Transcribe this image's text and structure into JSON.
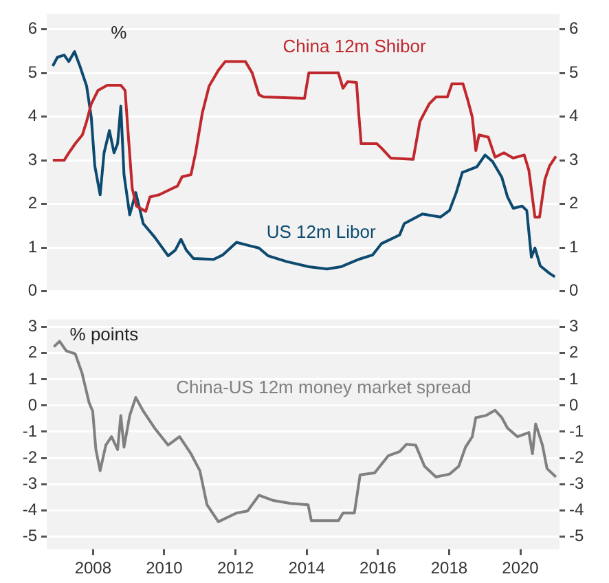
{
  "chart_data": [
    {
      "type": "line",
      "ylabel": "%",
      "xlim": [
        2006.7,
        2021.1
      ],
      "xticks": [
        2008,
        2010,
        2012,
        2014,
        2016,
        2018,
        2020
      ],
      "ylim": [
        0,
        6.35
      ],
      "yticks": [
        0,
        1,
        2,
        3,
        4,
        5,
        6
      ],
      "y2lim": [
        0,
        6.35
      ],
      "y2ticks": [
        0,
        1,
        2,
        3,
        4,
        5,
        6
      ],
      "tick_labels": "y",
      "grid": "y",
      "series": [
        {
          "name": "China 12m Shibor",
          "color": "#c0282d",
          "x": [
            2006.87,
            2007.19,
            2007.32,
            2007.5,
            2007.7,
            2007.82,
            2007.95,
            2008.14,
            2008.4,
            2008.78,
            2008.9,
            2008.99,
            2009.1,
            2009.22,
            2009.48,
            2009.6,
            2009.86,
            2010.11,
            2010.37,
            2010.5,
            2010.75,
            2010.88,
            2011.07,
            2011.26,
            2011.52,
            2011.71,
            2012.28,
            2012.47,
            2012.66,
            2012.79,
            2013.94,
            2014.06,
            2014.89,
            2015.02,
            2015.15,
            2015.4,
            2015.46,
            2015.53,
            2015.97,
            2016.1,
            2016.36,
            2016.99,
            2017.18,
            2017.44,
            2017.63,
            2017.95,
            2018.08,
            2018.39,
            2018.52,
            2018.65,
            2018.75,
            2018.84,
            2019.1,
            2019.29,
            2019.54,
            2019.8,
            2020.11,
            2020.24,
            2020.41,
            2020.54,
            2020.69,
            2020.82,
            2021.0
          ],
          "values": [
            3.0,
            3.0,
            3.17,
            3.38,
            3.58,
            3.89,
            4.29,
            4.6,
            4.72,
            4.72,
            4.6,
            3.58,
            2.36,
            1.95,
            1.83,
            2.16,
            2.21,
            2.31,
            2.41,
            2.62,
            2.67,
            3.17,
            4.09,
            4.7,
            5.06,
            5.26,
            5.26,
            5.0,
            4.5,
            4.45,
            4.42,
            5.0,
            5.0,
            4.65,
            4.8,
            4.78,
            4.09,
            3.38,
            3.38,
            3.28,
            3.05,
            3.02,
            3.89,
            4.29,
            4.45,
            4.45,
            4.75,
            4.75,
            4.39,
            3.99,
            3.22,
            3.58,
            3.53,
            3.07,
            3.17,
            3.05,
            3.12,
            2.77,
            1.7,
            1.7,
            2.56,
            2.87,
            3.09
          ]
        },
        {
          "name": "US 12m Libor",
          "color": "#0d4a70",
          "x": [
            2006.87,
            2007.0,
            2007.19,
            2007.32,
            2007.48,
            2007.63,
            2007.82,
            2007.95,
            2008.05,
            2008.2,
            2008.31,
            2008.46,
            2008.59,
            2008.69,
            2008.78,
            2008.87,
            2009.03,
            2009.2,
            2009.41,
            2009.73,
            2010.11,
            2010.31,
            2010.47,
            2010.62,
            2010.82,
            2011.39,
            2011.64,
            2012.03,
            2012.41,
            2012.66,
            2012.92,
            2013.43,
            2014.06,
            2014.57,
            2014.96,
            2015.46,
            2015.85,
            2016.1,
            2016.61,
            2016.74,
            2017.25,
            2017.76,
            2018.01,
            2018.2,
            2018.37,
            2018.78,
            2019.01,
            2019.22,
            2019.48,
            2019.64,
            2019.8,
            2020.05,
            2020.18,
            2020.31,
            2020.41,
            2020.56,
            2020.82,
            2020.97
          ],
          "values": [
            5.16,
            5.36,
            5.41,
            5.26,
            5.49,
            5.16,
            4.7,
            3.99,
            2.87,
            2.21,
            3.17,
            3.68,
            3.17,
            3.38,
            4.24,
            2.67,
            1.75,
            2.26,
            1.55,
            1.24,
            0.81,
            0.94,
            1.19,
            0.94,
            0.75,
            0.73,
            0.83,
            1.12,
            1.04,
            0.99,
            0.81,
            0.68,
            0.56,
            0.51,
            0.56,
            0.73,
            0.83,
            1.09,
            1.29,
            1.55,
            1.77,
            1.7,
            1.85,
            2.26,
            2.72,
            2.85,
            3.12,
            2.97,
            2.61,
            2.16,
            1.9,
            1.95,
            1.85,
            0.78,
            0.99,
            0.58,
            0.41,
            0.33
          ]
        }
      ]
    },
    {
      "type": "line",
      "ylabel": "% points",
      "xlim": [
        2006.7,
        2021.1
      ],
      "xticks": [
        2008,
        2010,
        2012,
        2014,
        2016,
        2018,
        2020
      ],
      "ylim": [
        -5.5,
        3.3
      ],
      "yticks": [
        -5,
        -4,
        -3,
        -2,
        -1,
        0,
        1,
        2,
        3
      ],
      "y2lim": [
        -5.5,
        3.3
      ],
      "y2ticks": [
        -5,
        -4,
        -3,
        -2,
        -1,
        0,
        1,
        2,
        3
      ],
      "grid": "y",
      "series": [
        {
          "name": "China-US 12m money market spread",
          "color": "#808080",
          "x": [
            2006.9,
            2007.06,
            2007.25,
            2007.5,
            2007.69,
            2007.89,
            2007.99,
            2008.08,
            2008.2,
            2008.36,
            2008.52,
            2008.69,
            2008.78,
            2008.87,
            2009.03,
            2009.2,
            2009.41,
            2009.73,
            2010.11,
            2010.43,
            2010.75,
            2011.0,
            2011.2,
            2011.52,
            2012.03,
            2012.34,
            2012.66,
            2013.04,
            2013.55,
            2014.04,
            2014.13,
            2014.89,
            2015.02,
            2015.34,
            2015.5,
            2015.91,
            2016.29,
            2016.61,
            2016.8,
            2017.06,
            2017.31,
            2017.63,
            2018.01,
            2018.27,
            2018.46,
            2018.65,
            2018.75,
            2019.03,
            2019.29,
            2019.48,
            2019.64,
            2019.92,
            2020.24,
            2020.34,
            2020.43,
            2020.62,
            2020.75,
            2021.0
          ],
          "values": [
            2.25,
            2.46,
            2.09,
            1.98,
            1.25,
            0.11,
            -0.21,
            -1.68,
            -2.49,
            -1.51,
            -1.19,
            -1.68,
            -0.38,
            -1.59,
            -0.38,
            0.31,
            -0.21,
            -0.86,
            -1.51,
            -1.19,
            -1.84,
            -2.49,
            -3.79,
            -4.44,
            -4.11,
            -4.03,
            -3.43,
            -3.62,
            -3.74,
            -3.79,
            -4.4,
            -4.4,
            -4.11,
            -4.11,
            -2.65,
            -2.57,
            -1.92,
            -1.76,
            -1.48,
            -1.51,
            -2.32,
            -2.73,
            -2.62,
            -2.32,
            -1.59,
            -1.19,
            -0.46,
            -0.38,
            -0.18,
            -0.46,
            -0.86,
            -1.19,
            -1.03,
            -1.84,
            -0.7,
            -1.51,
            -2.41,
            -2.73
          ]
        }
      ]
    }
  ]
}
